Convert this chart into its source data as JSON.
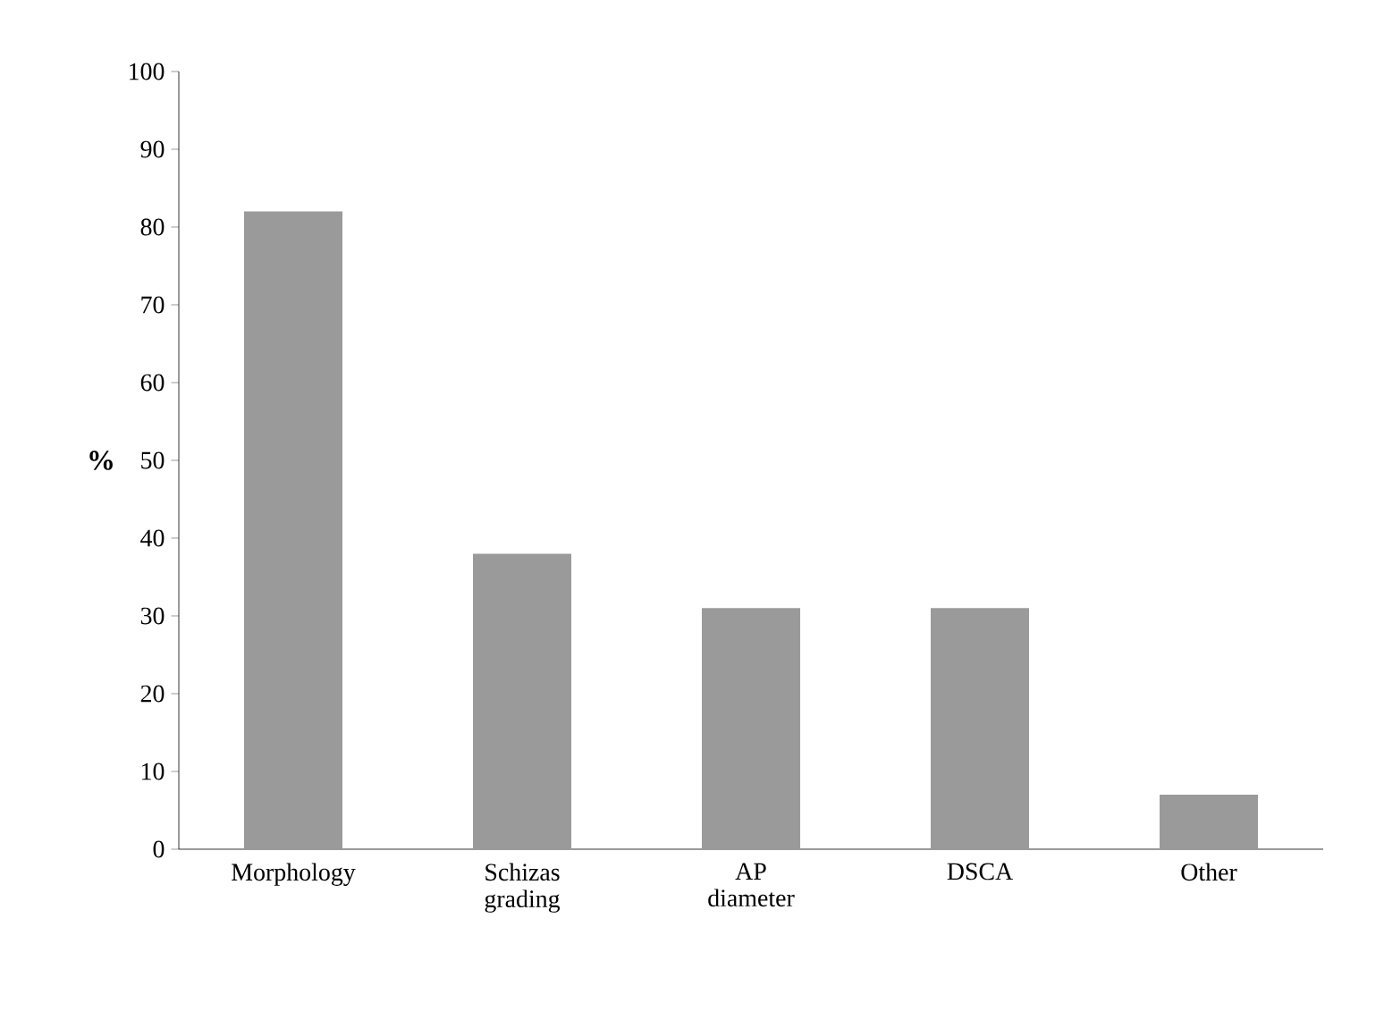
{
  "chart_data": {
    "type": "bar",
    "ylabel": "%",
    "categories": [
      "Morphology",
      "Schizas grading",
      "AP diameter",
      "DSCA",
      "Other"
    ],
    "values": [
      82,
      38,
      31,
      31,
      7
    ],
    "color": "#9a9a9a",
    "ylim": [
      0,
      100
    ],
    "yticks": [
      0,
      10,
      20,
      30,
      40,
      50,
      60,
      70,
      80,
      90,
      100
    ],
    "grid": false
  }
}
